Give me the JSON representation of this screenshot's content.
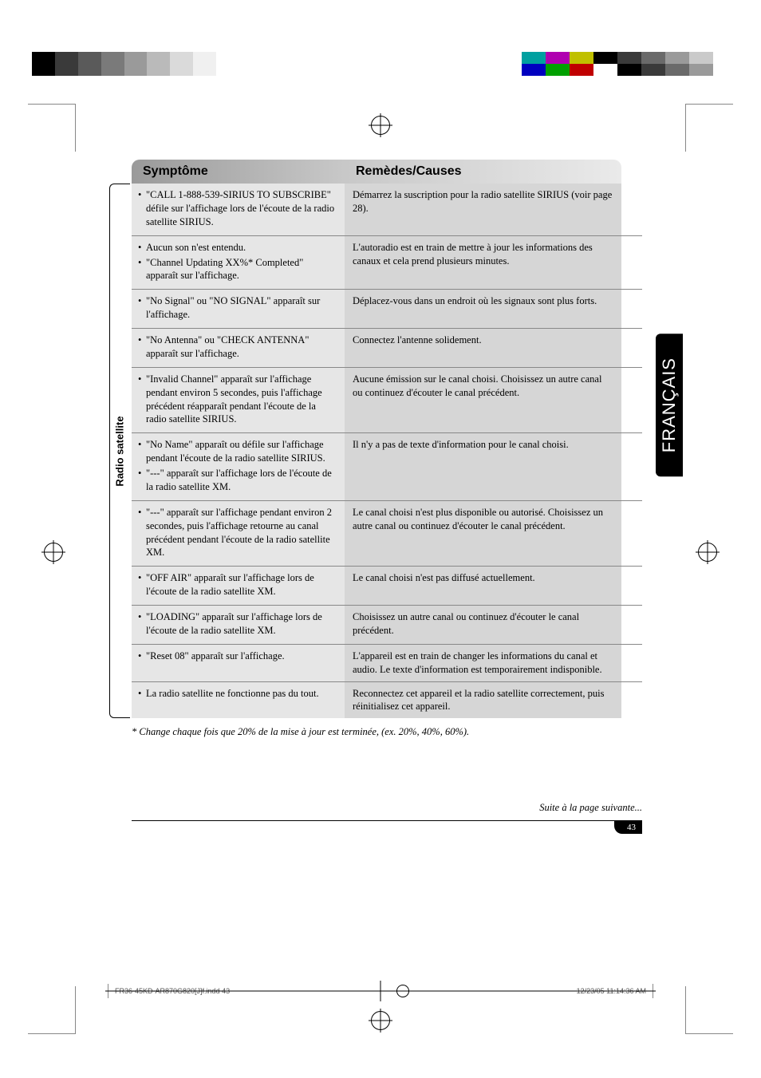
{
  "print": {
    "colorbar_left": [
      "#000000",
      "#3a3a3a",
      "#5a5a5a",
      "#7a7a7a",
      "#9a9a9a",
      "#bababa",
      "#dadada",
      "#f0f0f0",
      "#ffffff"
    ],
    "colorbar_right_top": [
      "#00a0a0",
      "#b000b0",
      "#c0c000",
      "#000000",
      "#3a3a3a",
      "#6a6a6a",
      "#9a9a9a",
      "#cacaca"
    ],
    "colorbar_right_bottom": [
      "#0000c0",
      "#00a000",
      "#c00000",
      "#ffffff",
      "#000000",
      "#3a3a3a",
      "#6a6a6a",
      "#9a9a9a"
    ]
  },
  "lang_tab": "FRANÇAIS",
  "headers": {
    "col1": "Symptôme",
    "col2": "Remèdes/Causes"
  },
  "side_label": "Radio satellite",
  "rows": [
    {
      "symptoms": [
        "\"CALL 1-888-539-SIRIUS TO SUBSCRIBE\" défile sur l'affichage lors de l'écoute de la radio satellite SIRIUS."
      ],
      "remedy": "Démarrez la suscription pour la radio satellite SIRIUS (voir page 28)."
    },
    {
      "symptoms": [
        "Aucun son n'est entendu.",
        "\"Channel Updating XX%* Completed\" apparaît sur l'affichage."
      ],
      "remedy": "L'autoradio est en train de mettre à jour les informations des canaux et cela prend plusieurs minutes."
    },
    {
      "symptoms": [
        "\"No Signal\" ou \"NO SIGNAL\" apparaît sur l'affichage."
      ],
      "remedy": "Déplacez-vous dans un endroit où les signaux sont plus forts."
    },
    {
      "symptoms": [
        "\"No Antenna\" ou \"CHECK ANTENNA\" apparaît sur l'affichage."
      ],
      "remedy": "Connectez l'antenne solidement."
    },
    {
      "symptoms": [
        "\"Invalid Channel\" apparaît sur l'affichage pendant environ 5 secondes, puis l'affichage précédent réapparaît pendant l'écoute de la radio satellite SIRIUS."
      ],
      "remedy": "Aucune émission sur le canal choisi. Choisissez un autre canal ou continuez d'écouter le canal précédent."
    },
    {
      "symptoms": [
        "\"No Name\" apparaît ou défile sur l'affichage pendant l'écoute de la radio satellite SIRIUS.",
        "\"---\" apparaît sur l'affichage lors de l'écoute de la radio satellite XM."
      ],
      "remedy": "Il n'y a pas de texte d'information pour le canal choisi."
    },
    {
      "symptoms": [
        "\"---\" apparaît sur l'affichage pendant environ 2 secondes, puis l'affichage retourne au canal précédent pendant l'écoute de la radio satellite XM."
      ],
      "remedy": "Le canal choisi n'est plus disponible ou autorisé. Choisissez un autre canal ou continuez d'écouter le canal précédent."
    },
    {
      "symptoms": [
        "\"OFF AIR\" apparaît sur l'affichage lors de l'écoute de la radio satellite XM."
      ],
      "remedy": "Le canal choisi n'est pas diffusé actuellement."
    },
    {
      "symptoms": [
        "\"LOADING\" apparaît sur l'affichage lors de l'écoute de la radio satellite XM."
      ],
      "remedy": "Choisissez un autre canal ou continuez d'écouter le canal précédent."
    },
    {
      "symptoms": [
        "\"Reset 08\" apparaît sur l'affichage."
      ],
      "remedy": "L'appareil est en train de changer les informations du canal et audio. Le texte d'information est temporairement indisponible."
    },
    {
      "symptoms": [
        "La radio satellite ne fonctionne pas du tout."
      ],
      "remedy": "Reconnectez cet appareil et la radio satellite correctement, puis réinitialisez cet appareil."
    }
  ],
  "footnote": "* Change chaque fois que 20% de la mise à jour est terminée, (ex. 20%, 40%, 60%).",
  "continue_text": "Suite à la page suivante...",
  "page_number": "43",
  "footer": {
    "left": "FR36-45KD-AR870G820[J]f.indd   43",
    "right": "12/23/05   11:14:36 AM"
  }
}
